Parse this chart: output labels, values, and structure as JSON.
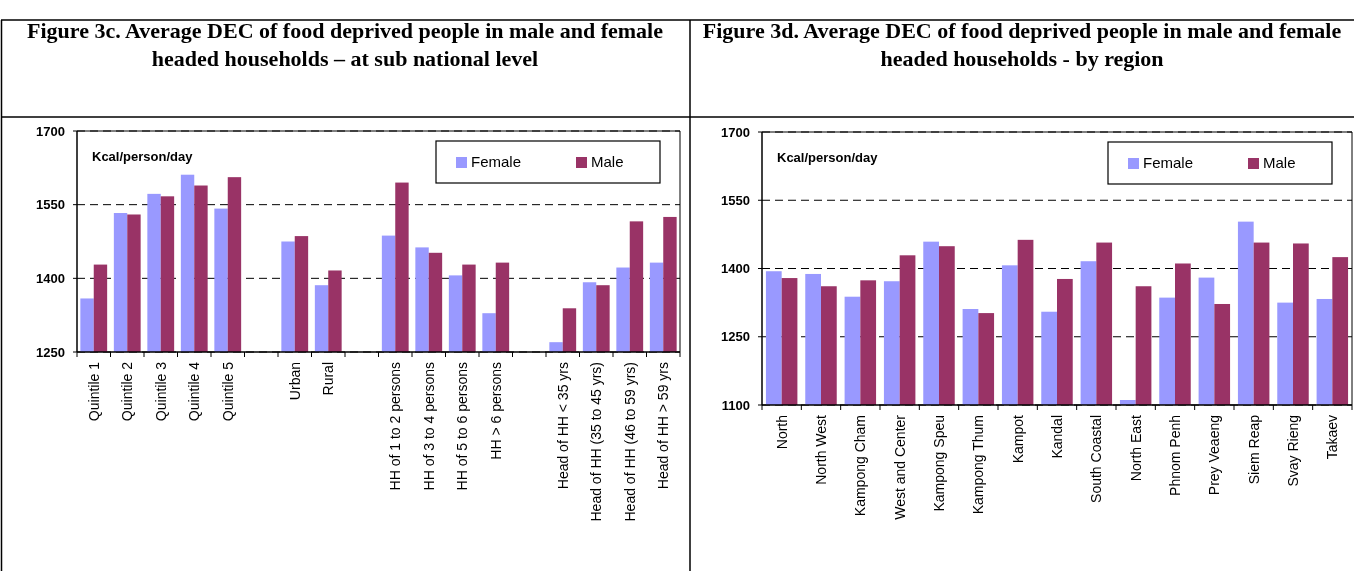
{
  "chart_data": [
    {
      "type": "bar",
      "title": "Figure 3c. Average DEC of food deprived people in male and female headed households – at sub national level",
      "ylabel": "Kcal/person/day",
      "categories": [
        "Quintile 1",
        "Quintile 2",
        "Quintile 3",
        "Quintile 4",
        "Quintile 5",
        null,
        "Urban",
        "Rural",
        null,
        "HH of 1 to 2 persons",
        "HH of 3 to 4 persons",
        "HH of 5 to 6 persons",
        "HH > 6 persons",
        null,
        "Head of HH < 35 yrs",
        "Head of HH (35 to 45 yrs)",
        "Head of HH (46 to 59 yrs)",
        "Head of HH > 59 yrs"
      ],
      "series": [
        {
          "name": "Female",
          "color": "#9999ff",
          "values": [
            1359,
            1533,
            1572,
            1611,
            1542,
            null,
            1475,
            1386,
            null,
            1487,
            1463,
            1406,
            1329,
            null,
            1270,
            1392,
            1422,
            1432
          ]
        },
        {
          "name": "Male",
          "color": "#993366",
          "values": [
            1428,
            1530,
            1567,
            1589,
            1606,
            null,
            1486,
            1416,
            null,
            1595,
            1452,
            1428,
            1432,
            null,
            1339,
            1386,
            1516,
            1525
          ]
        }
      ],
      "ylim": [
        1250,
        1700
      ],
      "yticks": [
        1250,
        1400,
        1550,
        1700
      ],
      "grid": "y",
      "legend": "top right"
    },
    {
      "type": "bar",
      "title": "Figure 3d. Average DEC of food deprived people in male and female headed households - by region",
      "ylabel": "Kcal/person/day",
      "categories": [
        "North",
        "North West",
        "Kampong Cham",
        "West and Center",
        "Kampong Speu",
        "Kampong Thum",
        "Kampot",
        "Kandal",
        "South Coastal",
        "North East",
        "Phnom Penh",
        "Prey Veaeng",
        "Siem Reap",
        "Svay Rieng",
        "Takaev"
      ],
      "series": [
        {
          "name": "Female",
          "color": "#9999ff",
          "values": [
            1394,
            1388,
            1338,
            1372,
            1459,
            1311,
            1407,
            1305,
            1416,
            1111,
            1336,
            1380,
            1503,
            1325,
            1333
          ]
        },
        {
          "name": "Male",
          "color": "#993366",
          "values": [
            1379,
            1361,
            1374,
            1429,
            1449,
            1302,
            1463,
            1377,
            1457,
            1361,
            1411,
            1322,
            1457,
            1455,
            1425
          ]
        }
      ],
      "ylim": [
        1100,
        1700
      ],
      "yticks": [
        1100,
        1250,
        1400,
        1550,
        1700
      ],
      "grid": "y",
      "legend": "top right"
    }
  ]
}
